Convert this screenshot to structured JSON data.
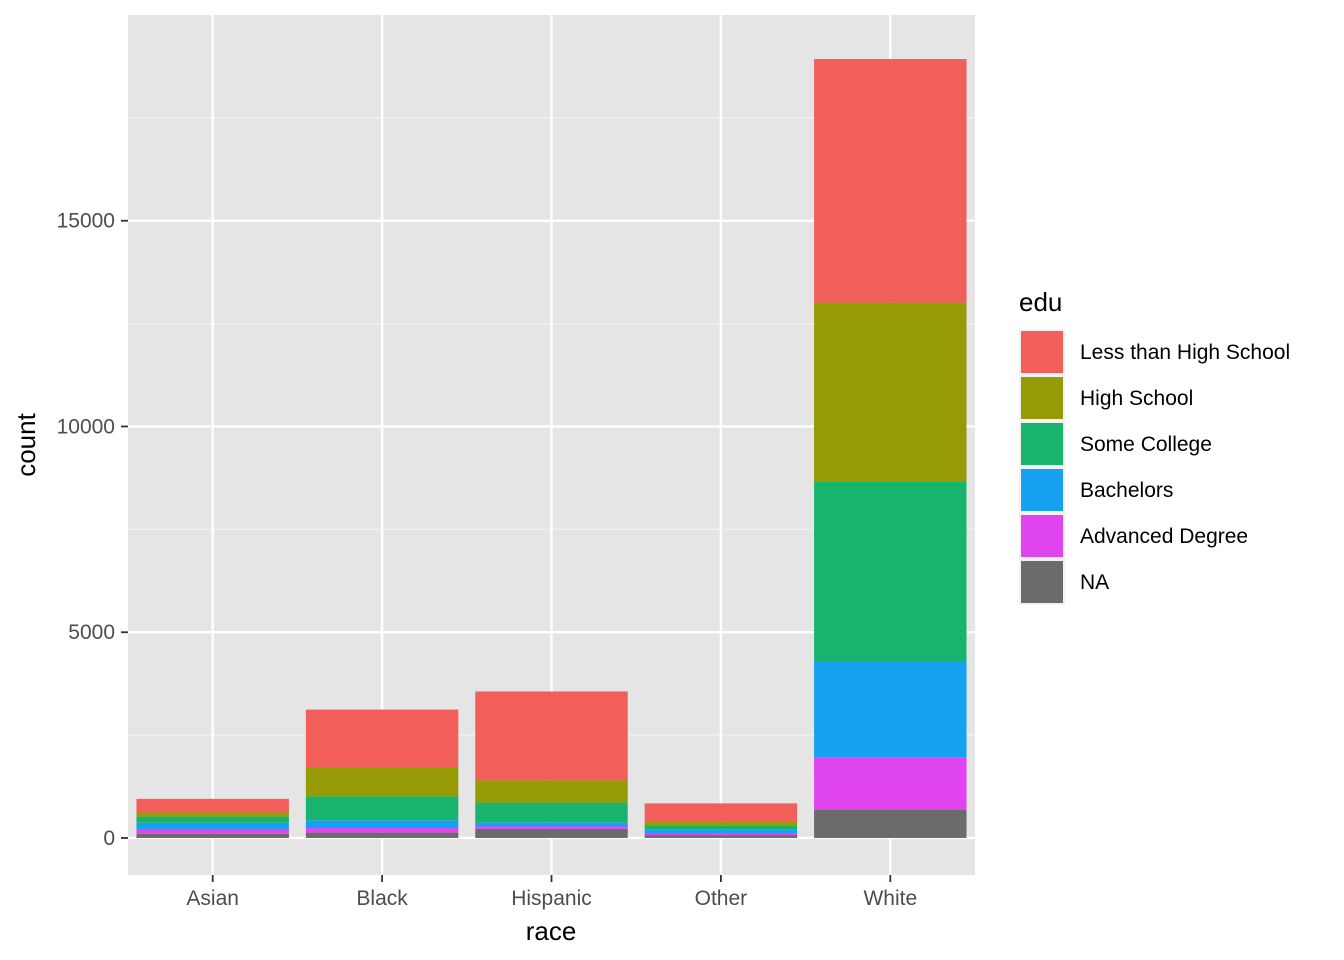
{
  "chart_data": {
    "type": "bar",
    "stacked": true,
    "title": "",
    "xlabel": "race",
    "ylabel": "count",
    "categories": [
      "Asian",
      "Black",
      "Hispanic",
      "Other",
      "White"
    ],
    "ylim": [
      -900,
      20000
    ],
    "yticks": [
      0,
      5000,
      10000,
      15000
    ],
    "ytick_labels": [
      "0",
      "5000",
      "10000",
      "15000"
    ],
    "grid": true,
    "legend": {
      "title": "edu",
      "placement": "right",
      "order": [
        "Less than High School",
        "High School",
        "Some College",
        "Bachelors",
        "Advanced Degree",
        "NA"
      ]
    },
    "series": [
      {
        "name": "NA",
        "color": "#6b6b6b",
        "values": [
          100,
          130,
          220,
          70,
          680
        ]
      },
      {
        "name": "Advanced Degree",
        "color": "#e044ef",
        "values": [
          120,
          110,
          60,
          50,
          1280
        ]
      },
      {
        "name": "Bachelors",
        "color": "#16a0f0",
        "values": [
          150,
          190,
          100,
          80,
          2330
        ]
      },
      {
        "name": "Some College",
        "color": "#18b46d",
        "values": [
          150,
          580,
          480,
          110,
          4380
        ]
      },
      {
        "name": "High School",
        "color": "#969a05",
        "values": [
          100,
          690,
          540,
          100,
          4340
        ]
      },
      {
        "name": "Less than High School",
        "color": "#f25f5a",
        "values": [
          330,
          1420,
          2160,
          430,
          5920
        ]
      }
    ]
  }
}
